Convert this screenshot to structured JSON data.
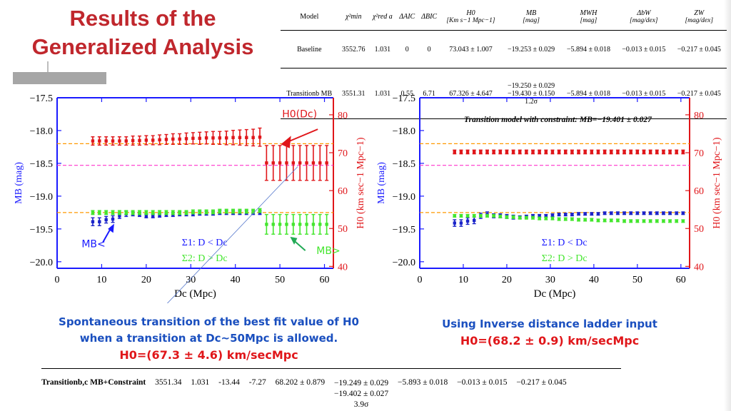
{
  "slide_title": {
    "line1": "Results of the",
    "line2": "Generalized Analysis"
  },
  "table": {
    "headers": [
      "Model",
      "χ²min",
      "χ²red a",
      "ΔAIC",
      "ΔBIC",
      "H0",
      "MB",
      "MWH",
      "ΔbW",
      "ZW"
    ],
    "header_units": [
      "",
      "",
      "",
      "",
      "",
      "[Km s−1 Mpc−1]",
      "[mag]",
      "[mag]",
      "[mag/dex]",
      "[mag/dex]"
    ],
    "rows": [
      {
        "model": "Baseline",
        "chi2min": "3552.76",
        "chi2red": "1.031",
        "daic": "0",
        "dbic": "0",
        "h0": "73.043 ± 1.007",
        "mb": "−19.253 ± 0.029",
        "mbl": "",
        "sig": "",
        "mhw": "−5.894 ± 0.018",
        "dbw": "−0.013 ± 0.015",
        "zw": "−0.217 ± 0.045"
      },
      {
        "model": "Transitionb MB",
        "chi2min": "3551.31",
        "chi2red": "1.031",
        "daic": "0.55",
        "dbic": "6.71",
        "h0": "67.326 ± 4.647",
        "mb": "−19.250 ± 0.029",
        "mbl": "−19.430 ± 0.150",
        "sig": "1.2σ",
        "mhw": "−5.894 ± 0.018",
        "dbw": "−0.013 ± 0.015",
        "zw": "−0.217 ± 0.045"
      }
    ]
  },
  "captions": {
    "left_line1": "Spontaneous transition of the best fit value of H0",
    "left_line2": "when a transition at Dc~50Mpc is allowed.",
    "left_h0": "H0=(67.3 ± 4.6) km/secMpc",
    "right_line1": "Using Inverse distance ladder input",
    "right_h0": "H0=(68.2 ± 0.9) km/secMpc"
  },
  "bottom_row": {
    "model": "Transitionb,c MB+Constraint",
    "chi2min": "3551.34",
    "chi2red": "1.031",
    "daic": "-13.44",
    "dbic": "-7.27",
    "h0": "68.202 ± 0.879",
    "mb": "−19.249 ± 0.029",
    "mbl": "−19.402 ± 0.027",
    "sig": "3.9σ",
    "mhw": "−5.893 ± 0.018",
    "dbw": "−0.013 ± 0.015",
    "zw": "−0.217 ± 0.045"
  },
  "colors": {
    "title": "#c0272d",
    "h0": "#e0161a",
    "mb_low": "#1b24c9",
    "mb_high": "#44e62e",
    "ref_h0": "#ff33cc",
    "ref_orange": "#ff9900",
    "frame": "#1a1aff",
    "right_axis": "#e0161a",
    "caption": "#1a4fbf"
  },
  "chart_data": [
    {
      "type": "scatter",
      "xlabel": "Dc (Mpc)",
      "ylabel_left": "MB (mag)",
      "ylabel_right": "H0 (km sec−1 Mpc−1)",
      "xlim": [
        0,
        62
      ],
      "ylim_left": [
        -20.1,
        -17.5
      ],
      "ylim_right": [
        39.5,
        84.5
      ],
      "xticks": [
        0,
        10,
        20,
        30,
        40,
        50,
        60
      ],
      "yticks_left": [
        -17.5,
        -18.0,
        -18.5,
        -19.0,
        -19.5,
        -20.0
      ],
      "yticks_right": [
        40,
        50,
        60,
        70,
        80
      ],
      "ref_lines_left": [
        -18.2,
        -18.53,
        -19.25
      ],
      "annotations": [
        "H0(Dc)",
        "MB<",
        "MB>"
      ],
      "legend": [
        "Σ1: D < Dc",
        "Σ2: D > Dc"
      ],
      "series": [
        {
          "name": "H0",
          "axis": "right",
          "x": [
            8,
            9.5,
            11,
            12.5,
            14,
            15.5,
            17,
            18.5,
            20,
            21.5,
            23,
            24.5,
            26,
            27.5,
            29,
            30.5,
            32,
            33.5,
            35,
            36.5,
            38,
            39.5,
            41,
            42.5,
            44,
            45.5,
            47,
            48.5,
            50,
            51.5,
            53,
            54.5,
            56,
            57.5,
            59,
            60.5
          ],
          "y": [
            73.1,
            73.1,
            73.1,
            73.1,
            73.1,
            73.1,
            73.2,
            73.2,
            73.3,
            73.3,
            73.4,
            73.5,
            73.6,
            73.6,
            73.7,
            73.8,
            73.8,
            73.9,
            73.9,
            73.9,
            73.9,
            74.0,
            74.0,
            74.0,
            74.0,
            74.1,
            67.3,
            67.3,
            67.3,
            67.3,
            67.3,
            67.3,
            67.3,
            67.3,
            67.3,
            67.3
          ],
          "err": [
            1.1,
            1.1,
            1.1,
            1.1,
            1.1,
            1.1,
            1.2,
            1.2,
            1.2,
            1.2,
            1.3,
            1.3,
            1.4,
            1.4,
            1.5,
            1.5,
            1.6,
            1.6,
            1.7,
            1.7,
            1.8,
            1.9,
            2.0,
            2.1,
            2.2,
            2.4,
            4.6,
            4.6,
            4.6,
            4.6,
            4.6,
            4.6,
            4.6,
            4.6,
            4.6,
            4.6
          ]
        },
        {
          "name": "MB<",
          "axis": "left",
          "x": [
            8,
            9.5,
            11,
            12.5,
            14,
            15.5,
            17,
            18.5,
            20,
            21.5,
            23,
            24.5,
            26,
            27.5,
            29,
            30.5,
            32,
            33.5,
            35,
            36.5,
            38,
            39.5,
            41,
            42.5,
            44,
            45.5
          ],
          "y": [
            -19.39,
            -19.39,
            -19.36,
            -19.35,
            -19.3,
            -19.27,
            -19.27,
            -19.28,
            -19.3,
            -19.3,
            -19.29,
            -19.28,
            -19.28,
            -19.27,
            -19.27,
            -19.27,
            -19.26,
            -19.26,
            -19.26,
            -19.25,
            -19.25,
            -19.25,
            -19.25,
            -19.25,
            -19.25,
            -19.25
          ],
          "err": [
            0.06,
            0.06,
            0.05,
            0.05,
            0.04,
            0.04,
            0.03,
            0.03,
            0.03,
            0.03,
            0.03,
            0.03,
            0.03,
            0.03,
            0.03,
            0.03,
            0.03,
            0.03,
            0.03,
            0.03,
            0.03,
            0.03,
            0.03,
            0.03,
            0.03,
            0.03
          ]
        },
        {
          "name": "MB>",
          "axis": "left",
          "x": [
            8,
            9.5,
            11,
            12.5,
            14,
            15.5,
            17,
            18.5,
            20,
            21.5,
            23,
            24.5,
            26,
            27.5,
            29,
            30.5,
            32,
            33.5,
            35,
            36.5,
            38,
            39.5,
            41,
            42.5,
            44,
            45.5,
            47,
            48.5,
            50,
            51.5,
            53,
            54.5,
            56,
            57.5,
            59,
            60.5
          ],
          "y": [
            -19.25,
            -19.25,
            -19.25,
            -19.25,
            -19.25,
            -19.25,
            -19.25,
            -19.25,
            -19.25,
            -19.25,
            -19.25,
            -19.25,
            -19.25,
            -19.25,
            -19.25,
            -19.24,
            -19.24,
            -19.24,
            -19.24,
            -19.23,
            -19.23,
            -19.23,
            -19.23,
            -19.23,
            -19.23,
            -19.22,
            -19.43,
            -19.43,
            -19.43,
            -19.43,
            -19.43,
            -19.43,
            -19.43,
            -19.43,
            -19.43,
            -19.43
          ],
          "err": [
            0.03,
            0.03,
            0.03,
            0.03,
            0.03,
            0.03,
            0.03,
            0.03,
            0.03,
            0.03,
            0.03,
            0.03,
            0.03,
            0.03,
            0.03,
            0.03,
            0.03,
            0.03,
            0.03,
            0.03,
            0.03,
            0.03,
            0.03,
            0.03,
            0.03,
            0.03,
            0.15,
            0.15,
            0.15,
            0.15,
            0.15,
            0.15,
            0.15,
            0.15,
            0.15,
            0.15
          ]
        }
      ]
    },
    {
      "type": "scatter",
      "title": "Transition model with constraint: MB=−19.401 ± 0.027",
      "xlabel": "Dc (Mpc)",
      "ylabel_left": "MB (mag)",
      "ylabel_right": "H0 (km sec−1 Mpc−1)",
      "xlim": [
        0,
        62
      ],
      "ylim_left": [
        -20.1,
        -17.5
      ],
      "ylim_right": [
        39.5,
        84.5
      ],
      "xticks": [
        0,
        10,
        20,
        30,
        40,
        50,
        60
      ],
      "yticks_left": [
        -17.5,
        -18.0,
        -18.5,
        -19.0,
        -19.5,
        -20.0
      ],
      "yticks_right": [
        40,
        50,
        60,
        70,
        80
      ],
      "ref_lines_left": [
        -18.2,
        -18.53,
        -19.25
      ],
      "legend": [
        "Σ1: D < Dc",
        "Σ2: D > Dc"
      ],
      "series": [
        {
          "name": "H0",
          "axis": "right",
          "x": [
            8,
            9.5,
            11,
            12.5,
            14,
            15.5,
            17,
            18.5,
            20,
            21.5,
            23,
            24.5,
            26,
            27.5,
            29,
            30.5,
            32,
            33.5,
            35,
            36.5,
            38,
            39.5,
            41,
            42.5,
            44,
            45.5,
            47,
            48.5,
            50,
            51.5,
            53,
            54.5,
            56,
            57.5,
            59,
            60.5
          ],
          "y": [
            70.2,
            70.2,
            70.2,
            70.2,
            70.2,
            70.2,
            70.2,
            70.2,
            70.2,
            70.2,
            70.2,
            70.2,
            70.2,
            70.2,
            70.2,
            70.2,
            70.2,
            70.2,
            70.2,
            70.2,
            70.2,
            70.2,
            70.2,
            70.2,
            70.2,
            70.2,
            70.2,
            70.2,
            70.2,
            70.2,
            70.2,
            70.2,
            70.2,
            70.2,
            70.2,
            70.2
          ],
          "err": [
            0.5,
            0.5,
            0.5,
            0.5,
            0.5,
            0.5,
            0.5,
            0.5,
            0.5,
            0.5,
            0.5,
            0.5,
            0.5,
            0.5,
            0.5,
            0.5,
            0.5,
            0.5,
            0.5,
            0.5,
            0.5,
            0.5,
            0.5,
            0.5,
            0.5,
            0.5,
            0.5,
            0.5,
            0.5,
            0.5,
            0.5,
            0.5,
            0.5,
            0.5,
            0.5,
            0.5
          ]
        },
        {
          "name": "MB<",
          "axis": "left",
          "x": [
            8,
            9.5,
            11,
            12.5,
            14,
            15.5,
            17,
            18.5,
            20,
            21.5,
            23,
            24.5,
            26,
            27.5,
            29,
            30.5,
            32,
            33.5,
            35,
            36.5,
            38,
            39.5,
            41,
            42.5,
            44,
            45.5,
            47,
            48.5,
            50,
            51.5,
            53,
            54.5,
            56,
            57.5,
            59,
            60.5
          ],
          "y": [
            -19.41,
            -19.41,
            -19.38,
            -19.37,
            -19.3,
            -19.28,
            -19.3,
            -19.3,
            -19.31,
            -19.32,
            -19.32,
            -19.31,
            -19.3,
            -19.3,
            -19.3,
            -19.29,
            -19.28,
            -19.28,
            -19.28,
            -19.27,
            -19.27,
            -19.27,
            -19.27,
            -19.26,
            -19.26,
            -19.26,
            -19.26,
            -19.26,
            -19.26,
            -19.26,
            -19.26,
            -19.26,
            -19.26,
            -19.26,
            -19.26,
            -19.26
          ],
          "err": [
            0.05,
            0.05,
            0.05,
            0.05,
            0.04,
            0.04,
            0.03,
            0.03,
            0.03,
            0.03,
            0.02,
            0.02,
            0.02,
            0.02,
            0.02,
            0.02,
            0.02,
            0.02,
            0.02,
            0.02,
            0.02,
            0.02,
            0.02,
            0.02,
            0.02,
            0.02,
            0.02,
            0.02,
            0.02,
            0.02,
            0.02,
            0.02,
            0.02,
            0.02,
            0.02,
            0.02
          ]
        },
        {
          "name": "MB>",
          "axis": "left",
          "x": [
            8,
            9.5,
            11,
            12.5,
            14,
            15.5,
            17,
            18.5,
            20,
            21.5,
            23,
            24.5,
            26,
            27.5,
            29,
            30.5,
            32,
            33.5,
            35,
            36.5,
            38,
            39.5,
            41,
            42.5,
            44,
            45.5,
            47,
            48.5,
            50,
            51.5,
            53,
            54.5,
            56,
            57.5,
            59,
            60.5
          ],
          "y": [
            -19.3,
            -19.3,
            -19.3,
            -19.3,
            -19.3,
            -19.3,
            -19.3,
            -19.31,
            -19.32,
            -19.32,
            -19.33,
            -19.33,
            -19.33,
            -19.34,
            -19.34,
            -19.34,
            -19.35,
            -19.35,
            -19.35,
            -19.36,
            -19.36,
            -19.36,
            -19.37,
            -19.37,
            -19.37,
            -19.37,
            -19.38,
            -19.38,
            -19.38,
            -19.38,
            -19.38,
            -19.38,
            -19.38,
            -19.38,
            -19.38,
            -19.38
          ],
          "err": [
            0.02,
            0.02,
            0.02,
            0.02,
            0.02,
            0.02,
            0.02,
            0.02,
            0.02,
            0.02,
            0.02,
            0.02,
            0.02,
            0.02,
            0.02,
            0.02,
            0.02,
            0.02,
            0.02,
            0.02,
            0.02,
            0.02,
            0.02,
            0.02,
            0.02,
            0.02,
            0.02,
            0.02,
            0.02,
            0.02,
            0.02,
            0.02,
            0.02,
            0.02,
            0.02,
            0.02
          ]
        }
      ]
    }
  ]
}
